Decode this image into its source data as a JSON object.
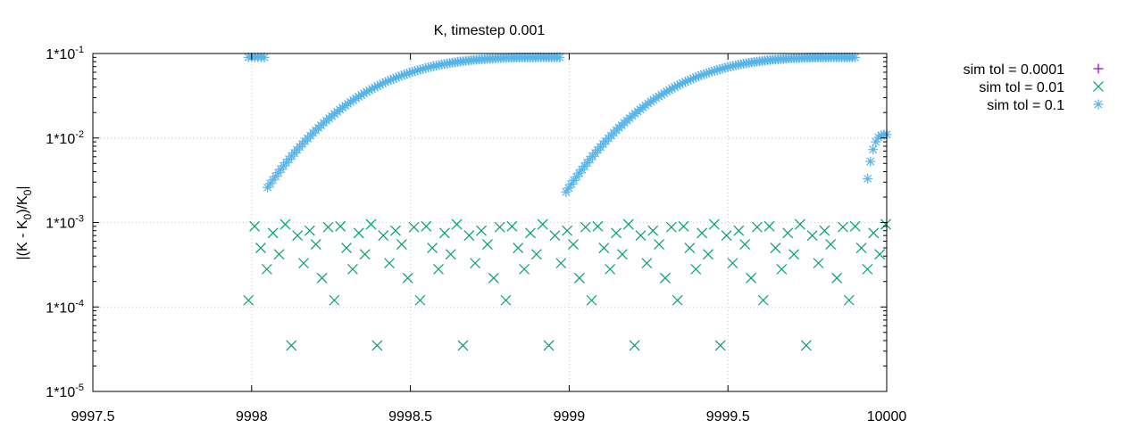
{
  "chart_data": {
    "type": "scatter",
    "title": "K, timestep 0.001",
    "ylabel_parts": [
      "|(K - K",
      "0",
      ")/K",
      "0",
      "|"
    ],
    "xlabel": "",
    "xlim": [
      9997.5,
      10000
    ],
    "ylim": [
      1e-05,
      0.1
    ],
    "yscale": "log",
    "grid": true,
    "legend_position": "top-right outside",
    "x_ticks": [
      9997.5,
      9998,
      9998.5,
      9999,
      9999.5,
      10000
    ],
    "x_tick_labels": [
      "9997.5",
      "9998",
      "9998.5",
      "9999",
      "9999.5",
      "10000"
    ],
    "y_ticks": [
      1e-05,
      0.0001,
      0.001,
      0.01,
      0.1
    ],
    "y_tick_labels": [
      "1*10-5",
      "1*10-4",
      "1*10-3",
      "1*10-2",
      "1*10-1"
    ],
    "y_tick_base": "1*10",
    "y_tick_exponents": [
      "-5",
      "-4",
      "-3",
      "-2",
      "-1"
    ],
    "series": [
      {
        "name": "sim tol = 0.0001",
        "marker": "plus",
        "color": "#9400d3",
        "points": []
      },
      {
        "name": "sim tol = 0.01",
        "marker": "cross",
        "color": "#009e73",
        "pattern": {
          "x_start": 9997.99,
          "x_end": 10000,
          "spacing": 0.0193,
          "y_cycle": [
            0.00012,
            0.0009,
            0.0005,
            0.00028,
            0.00075,
            0.00042,
            0.00095,
            3.5e-05,
            0.0007,
            0.00033,
            0.0008,
            0.00055,
            0.00022,
            0.00088
          ]
        }
      },
      {
        "name": "sim tol = 0.1",
        "marker": "star",
        "color": "#56b4e9",
        "segments": [
          {
            "x_start": 9997.99,
            "x_end": 9998.04,
            "y_start": 0.09,
            "y_end": 0.09,
            "count": 6
          },
          {
            "x_start": 9998.05,
            "x_end": 9998.97,
            "y_start": 0.0026,
            "y_end": 0.09,
            "count": 110
          },
          {
            "x_start": 9998.99,
            "x_end": 9999.9,
            "y_start": 0.0023,
            "y_end": 0.09,
            "count": 110
          },
          {
            "x_start": 9999.94,
            "x_end": 10000,
            "y_start": 0.0033,
            "y_end": 0.011,
            "count": 8
          }
        ]
      }
    ]
  }
}
